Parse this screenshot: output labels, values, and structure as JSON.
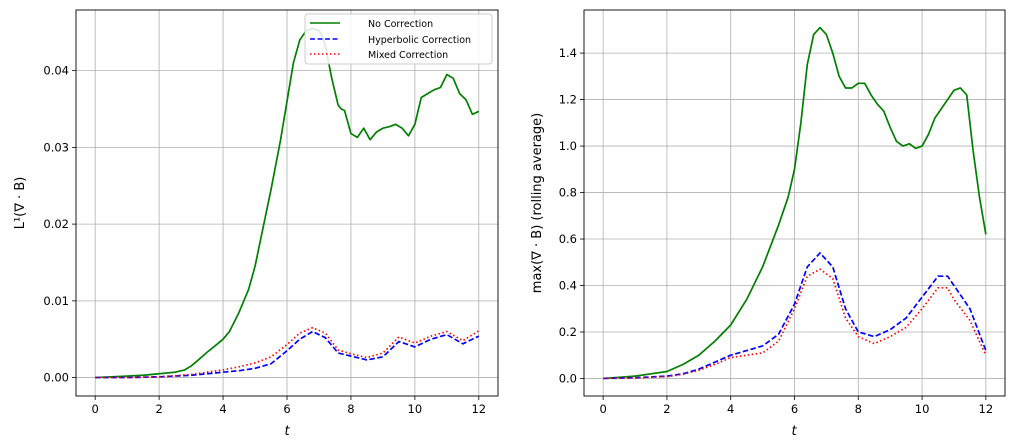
{
  "legend": {
    "entries": [
      {
        "label": "No Correction",
        "color": "#008000",
        "dash": "solid"
      },
      {
        "label": "Hyperbolic Correction",
        "color": "#0000ff",
        "dash": "dashed"
      },
      {
        "label": "Mixed Correction",
        "color": "#ff0000",
        "dash": "dotted"
      }
    ]
  },
  "chart_data": [
    {
      "type": "line",
      "title": "",
      "xlabel": "t",
      "ylabel": "L¹(∇ · B)",
      "xlim": [
        -0.6,
        12.6
      ],
      "ylim": [
        -0.0024,
        0.0479
      ],
      "xticks": [
        0,
        2,
        4,
        6,
        8,
        10,
        12
      ],
      "xtick_labels": [
        "0",
        "2",
        "4",
        "6",
        "8",
        "10",
        "12"
      ],
      "yticks": [
        0.0,
        0.01,
        0.02,
        0.03,
        0.04
      ],
      "ytick_labels": [
        "0.00",
        "0.01",
        "0.02",
        "0.03",
        "0.04"
      ],
      "grid": true,
      "legend_position": "top-right",
      "series": [
        {
          "name": "No Correction",
          "color": "#008000",
          "dash": "solid",
          "x": [
            0,
            0.5,
            1,
            1.5,
            2,
            2.5,
            2.8,
            3,
            3.2,
            3.5,
            3.8,
            4,
            4.2,
            4.5,
            4.8,
            5,
            5.2,
            5.5,
            5.8,
            6,
            6.2,
            6.4,
            6.6,
            6.8,
            7,
            7.1,
            7.2,
            7.4,
            7.6,
            7.7,
            7.8,
            8,
            8.2,
            8.4,
            8.6,
            8.8,
            9,
            9.2,
            9.4,
            9.6,
            9.8,
            10,
            10.2,
            10.4,
            10.6,
            10.8,
            11,
            11.2,
            11.4,
            11.6,
            11.8,
            12
          ],
          "y": [
            0,
            0.0001,
            0.0002,
            0.0003,
            0.0005,
            0.0007,
            0.001,
            0.0015,
            0.0022,
            0.0033,
            0.0043,
            0.005,
            0.006,
            0.0085,
            0.0115,
            0.0145,
            0.0185,
            0.0245,
            0.031,
            0.036,
            0.041,
            0.044,
            0.0452,
            0.0455,
            0.0452,
            0.0445,
            0.0432,
            0.039,
            0.0355,
            0.035,
            0.0348,
            0.0318,
            0.0313,
            0.0325,
            0.031,
            0.032,
            0.0325,
            0.0327,
            0.033,
            0.0325,
            0.0315,
            0.033,
            0.0365,
            0.037,
            0.0375,
            0.0378,
            0.0395,
            0.039,
            0.037,
            0.0362,
            0.0343,
            0.0347
          ]
        },
        {
          "name": "Hyperbolic Correction",
          "color": "#0000ff",
          "dash": "dashed",
          "x": [
            0,
            1,
            2,
            3,
            3.5,
            4,
            4.5,
            5,
            5.5,
            6,
            6.4,
            6.8,
            7.2,
            7.6,
            8,
            8.5,
            9,
            9.5,
            10,
            10.5,
            11,
            11.5,
            12
          ],
          "y": [
            0,
            0,
            0.0001,
            0.0003,
            0.0005,
            0.0007,
            0.0009,
            0.0012,
            0.0018,
            0.0035,
            0.005,
            0.006,
            0.0052,
            0.0032,
            0.0028,
            0.0023,
            0.0027,
            0.0047,
            0.004,
            0.005,
            0.0056,
            0.0044,
            0.0054
          ]
        },
        {
          "name": "Mixed Correction",
          "color": "#ff0000",
          "dash": "dotted",
          "x": [
            0,
            1,
            2,
            3,
            3.5,
            4,
            4.5,
            5,
            5.5,
            6,
            6.4,
            6.8,
            7.2,
            7.6,
            8,
            8.5,
            9,
            9.5,
            10,
            10.5,
            11,
            11.5,
            12
          ],
          "y": [
            0,
            0,
            0.0001,
            0.0004,
            0.0007,
            0.001,
            0.0014,
            0.0019,
            0.0027,
            0.0043,
            0.0058,
            0.0065,
            0.0058,
            0.0036,
            0.0031,
            0.0026,
            0.0032,
            0.0053,
            0.0045,
            0.0054,
            0.006,
            0.0048,
            0.0061
          ]
        }
      ]
    },
    {
      "type": "line",
      "title": "",
      "xlabel": "t",
      "ylabel": "max(∇ · B) (rolling average)",
      "xlim": [
        -0.6,
        12.6
      ],
      "ylim": [
        -0.0755,
        1.5855
      ],
      "xticks": [
        0,
        2,
        4,
        6,
        8,
        10,
        12
      ],
      "xtick_labels": [
        "0",
        "2",
        "4",
        "6",
        "8",
        "10",
        "12"
      ],
      "yticks": [
        0.0,
        0.2,
        0.4,
        0.6,
        0.8,
        1.0,
        1.2,
        1.4
      ],
      "ytick_labels": [
        "0.0",
        "0.2",
        "0.4",
        "0.6",
        "0.8",
        "1.0",
        "1.2",
        "1.4"
      ],
      "grid": true,
      "series": [
        {
          "name": "No Correction",
          "color": "#008000",
          "dash": "solid",
          "x": [
            0,
            0.5,
            1,
            1.5,
            2,
            2.5,
            3,
            3.5,
            4,
            4.5,
            5,
            5.5,
            5.8,
            6,
            6.2,
            6.4,
            6.6,
            6.8,
            7,
            7.2,
            7.4,
            7.6,
            7.8,
            8,
            8.2,
            8.4,
            8.6,
            8.8,
            9,
            9.2,
            9.4,
            9.6,
            9.8,
            10,
            10.2,
            10.4,
            10.6,
            10.8,
            11,
            11.2,
            11.4,
            11.6,
            11.8,
            12
          ],
          "y": [
            0,
            0.005,
            0.01,
            0.02,
            0.03,
            0.06,
            0.1,
            0.16,
            0.23,
            0.34,
            0.48,
            0.66,
            0.78,
            0.9,
            1.1,
            1.35,
            1.48,
            1.51,
            1.48,
            1.4,
            1.3,
            1.25,
            1.25,
            1.27,
            1.27,
            1.22,
            1.18,
            1.15,
            1.08,
            1.02,
            1.0,
            1.01,
            0.99,
            1.0,
            1.05,
            1.12,
            1.16,
            1.2,
            1.24,
            1.25,
            1.22,
            0.98,
            0.78,
            0.62
          ]
        },
        {
          "name": "Hyperbolic Correction",
          "color": "#0000ff",
          "dash": "dashed",
          "x": [
            0,
            1,
            2,
            2.5,
            3,
            3.5,
            4,
            4.5,
            5,
            5.5,
            6,
            6.4,
            6.8,
            7.2,
            7.6,
            8,
            8.5,
            9,
            9.5,
            10,
            10.5,
            10.8,
            11,
            11.5,
            12
          ],
          "y": [
            0,
            0.003,
            0.01,
            0.02,
            0.04,
            0.07,
            0.1,
            0.12,
            0.14,
            0.19,
            0.32,
            0.48,
            0.54,
            0.48,
            0.3,
            0.2,
            0.18,
            0.21,
            0.26,
            0.35,
            0.44,
            0.44,
            0.4,
            0.3,
            0.12
          ]
        },
        {
          "name": "Mixed Correction",
          "color": "#ff0000",
          "dash": "dotted",
          "x": [
            0,
            1,
            2,
            2.5,
            3,
            3.5,
            4,
            4.5,
            5,
            5.5,
            6,
            6.4,
            6.8,
            7.2,
            7.6,
            8,
            8.5,
            9,
            9.5,
            10,
            10.5,
            10.8,
            11,
            11.5,
            12
          ],
          "y": [
            0,
            0.002,
            0.008,
            0.018,
            0.035,
            0.06,
            0.09,
            0.1,
            0.11,
            0.16,
            0.3,
            0.44,
            0.47,
            0.43,
            0.26,
            0.18,
            0.15,
            0.18,
            0.22,
            0.3,
            0.39,
            0.39,
            0.34,
            0.25,
            0.1
          ]
        }
      ]
    }
  ]
}
